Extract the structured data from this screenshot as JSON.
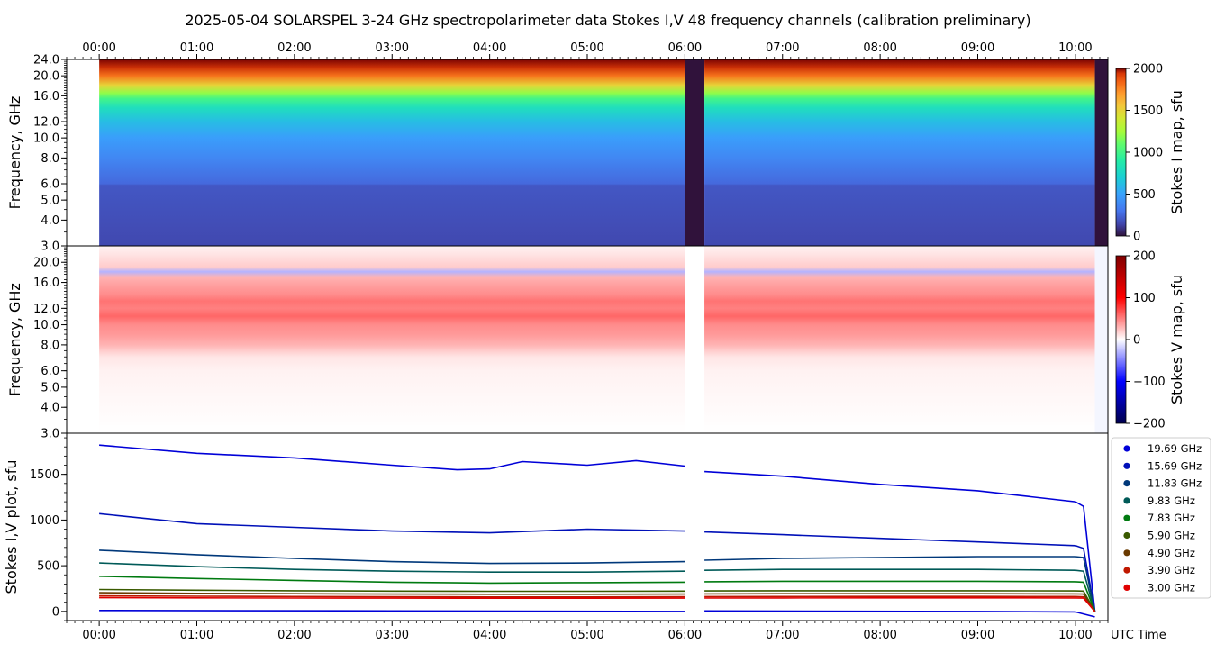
{
  "title": "2025-05-04  SOLARSPEL  3-24 GHz spectropolarimeter data   Stokes I,V   48 frequency channels   (calibration preliminary)",
  "time_ticks": [
    "00:00",
    "01:00",
    "02:00",
    "03:00",
    "04:00",
    "05:00",
    "06:00",
    "07:00",
    "08:00",
    "09:00",
    "10:00"
  ],
  "x_axis_label": "UTC Time",
  "chart_data": [
    {
      "type": "heatmap",
      "panel": "stokes-i",
      "ylabel": "Frequency, GHz",
      "yscale": "log",
      "ylim": [
        3.0,
        24.0
      ],
      "yticks": [
        "3.0",
        "4.0",
        "5.0",
        "6.0",
        "8.0",
        "10.0",
        "12.0",
        "16.0",
        "20.0",
        "24.0"
      ],
      "colorbar": {
        "label": "Stokes I map, sfu",
        "min": 0,
        "max": 2000,
        "ticks": [
          "0",
          "500",
          "1000",
          "1500",
          "2000"
        ],
        "colormap": "turbo"
      },
      "data_start": "00:00",
      "data_end": "10:12",
      "gap": [
        "06:00",
        "06:12"
      ],
      "profile": [
        {
          "ghz": 3.0,
          "sfu": 150
        },
        {
          "ghz": 5.9,
          "sfu": 200
        },
        {
          "ghz": 6.0,
          "sfu": 260
        },
        {
          "ghz": 8.0,
          "sfu": 380
        },
        {
          "ghz": 10.0,
          "sfu": 480
        },
        {
          "ghz": 12.0,
          "sfu": 620
        },
        {
          "ghz": 14.0,
          "sfu": 800
        },
        {
          "ghz": 15.5,
          "sfu": 1000
        },
        {
          "ghz": 16.5,
          "sfu": 1200
        },
        {
          "ghz": 18.0,
          "sfu": 1500
        },
        {
          "ghz": 20.0,
          "sfu": 1800
        },
        {
          "ghz": 22.0,
          "sfu": 1950
        },
        {
          "ghz": 24.0,
          "sfu": 2000
        }
      ]
    },
    {
      "type": "heatmap",
      "panel": "stokes-v",
      "ylabel": "Frequency, GHz",
      "yscale": "log",
      "ylim": [
        3.0,
        24.0
      ],
      "yticks": [
        "3.0",
        "4.0",
        "5.0",
        "6.0",
        "8.0",
        "10.0",
        "12.0",
        "16.0",
        "20.0"
      ],
      "colorbar": {
        "label": "Stokes V map, sfu",
        "min": -200,
        "max": 200,
        "ticks": [
          "−200",
          "−100",
          "0",
          "100",
          "200"
        ],
        "colormap": "seismic"
      },
      "data_start": "00:00",
      "data_end": "10:12",
      "gap": [
        "06:00",
        "06:12"
      ],
      "profile": [
        {
          "ghz": 3.0,
          "sfu": 0
        },
        {
          "ghz": 6.0,
          "sfu": 5
        },
        {
          "ghz": 7.0,
          "sfu": 10
        },
        {
          "ghz": 7.5,
          "sfu": 20
        },
        {
          "ghz": 8.0,
          "sfu": 30
        },
        {
          "ghz": 9.0,
          "sfu": 40
        },
        {
          "ghz": 10.0,
          "sfu": 45
        },
        {
          "ghz": 11.0,
          "sfu": 60
        },
        {
          "ghz": 12.0,
          "sfu": 50
        },
        {
          "ghz": 13.0,
          "sfu": 55
        },
        {
          "ghz": 14.0,
          "sfu": 45
        },
        {
          "ghz": 16.0,
          "sfu": 35
        },
        {
          "ghz": 17.0,
          "sfu": 30
        },
        {
          "ghz": 18.0,
          "sfu": -30
        },
        {
          "ghz": 19.0,
          "sfu": 20
        },
        {
          "ghz": 22.0,
          "sfu": 10
        },
        {
          "ghz": 24.0,
          "sfu": 5
        }
      ]
    },
    {
      "type": "line",
      "panel": "stokes-iv-plot",
      "ylabel": "Stokes I,V plot, sfu",
      "ylim": [
        -100,
        1950
      ],
      "yticks": [
        0,
        500,
        1000,
        1500
      ],
      "xlim": [
        "-00:20",
        "10:20"
      ],
      "legend_position": "right",
      "series": [
        {
          "name": "19.69 GHz",
          "color": "#0000d8",
          "x": [
            "00:00",
            "01:00",
            "02:00",
            "03:00",
            "03:40",
            "04:00",
            "04:20",
            "05:00",
            "05:30",
            "06:00",
            "06:12",
            "07:00",
            "08:00",
            "09:00",
            "10:00",
            "10:05",
            "10:12"
          ],
          "values": [
            1820,
            1730,
            1680,
            1600,
            1550,
            1560,
            1640,
            1600,
            1650,
            1590,
            1530,
            1480,
            1390,
            1320,
            1200,
            1150,
            0
          ]
        },
        {
          "name": "15.69 GHz",
          "color": "#0010b8",
          "x": [
            "00:00",
            "01:00",
            "02:00",
            "03:00",
            "04:00",
            "05:00",
            "06:00",
            "06:12",
            "07:00",
            "08:00",
            "09:00",
            "10:00",
            "10:05",
            "10:12"
          ],
          "values": [
            1070,
            960,
            920,
            880,
            860,
            900,
            880,
            870,
            840,
            800,
            760,
            720,
            690,
            0
          ]
        },
        {
          "name": "11.83 GHz",
          "color": "#00387a",
          "x": [
            "00:00",
            "01:00",
            "02:00",
            "03:00",
            "04:00",
            "05:00",
            "06:00",
            "06:12",
            "07:00",
            "08:00",
            "09:00",
            "10:00",
            "10:05",
            "10:12"
          ],
          "values": [
            670,
            620,
            580,
            545,
            525,
            530,
            545,
            560,
            580,
            590,
            600,
            600,
            590,
            0
          ]
        },
        {
          "name": "9.83 GHz",
          "color": "#005a58",
          "x": [
            "00:00",
            "01:00",
            "02:00",
            "03:00",
            "04:00",
            "05:00",
            "06:00",
            "06:12",
            "07:00",
            "08:00",
            "09:00",
            "10:00",
            "10:05",
            "10:12"
          ],
          "values": [
            530,
            490,
            460,
            440,
            430,
            430,
            440,
            450,
            460,
            460,
            460,
            450,
            440,
            0
          ]
        },
        {
          "name": "7.83 GHz",
          "color": "#007a10",
          "x": [
            "00:00",
            "01:00",
            "02:00",
            "03:00",
            "04:00",
            "05:00",
            "06:00",
            "06:12",
            "07:00",
            "08:00",
            "09:00",
            "10:00",
            "10:05",
            "10:12"
          ],
          "values": [
            385,
            360,
            340,
            320,
            310,
            315,
            320,
            325,
            330,
            330,
            330,
            325,
            320,
            0
          ]
        },
        {
          "name": "5.90 GHz",
          "color": "#3a5a00",
          "x": [
            "00:00",
            "01:00",
            "02:00",
            "03:00",
            "04:00",
            "05:00",
            "06:00",
            "06:12",
            "07:00",
            "08:00",
            "09:00",
            "10:00",
            "10:05",
            "10:12"
          ],
          "values": [
            240,
            232,
            226,
            222,
            220,
            220,
            222,
            224,
            226,
            226,
            226,
            224,
            222,
            0
          ]
        },
        {
          "name": "4.90 GHz",
          "color": "#6a3a00",
          "x": [
            "00:00",
            "01:00",
            "02:00",
            "03:00",
            "04:00",
            "05:00",
            "06:00",
            "06:12",
            "07:00",
            "08:00",
            "09:00",
            "10:00",
            "10:05",
            "10:12"
          ],
          "values": [
            205,
            198,
            194,
            190,
            188,
            188,
            190,
            192,
            194,
            194,
            194,
            192,
            190,
            0
          ]
        },
        {
          "name": "3.90 GHz",
          "color": "#c01800",
          "x": [
            "00:00",
            "01:00",
            "02:00",
            "03:00",
            "04:00",
            "05:00",
            "06:00",
            "06:12",
            "07:00",
            "08:00",
            "09:00",
            "10:00",
            "10:05",
            "10:12"
          ],
          "values": [
            170,
            166,
            163,
            160,
            158,
            158,
            160,
            162,
            163,
            164,
            164,
            163,
            160,
            0
          ]
        },
        {
          "name": "3.00 GHz",
          "color": "#e00000",
          "x": [
            "00:00",
            "01:00",
            "02:00",
            "03:00",
            "04:00",
            "05:00",
            "06:00",
            "06:12",
            "07:00",
            "08:00",
            "09:00",
            "10:00",
            "10:05",
            "10:12"
          ],
          "values": [
            150,
            148,
            146,
            145,
            144,
            144,
            145,
            146,
            147,
            148,
            148,
            147,
            145,
            0
          ]
        },
        {
          "name": "",
          "color": "#0000d8",
          "x": [
            "00:00",
            "03:00",
            "06:00",
            "06:12",
            "09:00",
            "10:00",
            "10:12"
          ],
          "values": [
            10,
            5,
            0,
            5,
            0,
            -5,
            -60
          ]
        }
      ]
    }
  ]
}
